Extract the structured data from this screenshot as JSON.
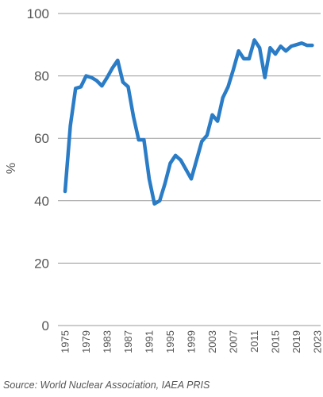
{
  "source": "Source: World Nuclear Association, IAEA PRIS",
  "colors": {
    "line": "#2a7cc6",
    "grid": "#9a9a9a",
    "text": "#555555"
  },
  "chart_data": {
    "type": "line",
    "title": "",
    "xlabel": "",
    "ylabel": "%",
    "ylim": [
      0,
      100
    ],
    "xlim": [
      1975,
      2023
    ],
    "yticks": [
      "0",
      "20",
      "40",
      "60",
      "80",
      "100"
    ],
    "xticks": [
      "1975",
      "1979",
      "1983",
      "1987",
      "1991",
      "1995",
      "1999",
      "2003",
      "2007",
      "2011",
      "2015",
      "2019",
      "2023"
    ],
    "grid": true,
    "legend": "none",
    "series": [
      {
        "x": [
          1975,
          1976,
          1977,
          1978,
          1979,
          1980,
          1981,
          1982,
          1983,
          1984,
          1985,
          1986,
          1987,
          1988,
          1989,
          1990,
          1991,
          1992,
          1993,
          1994,
          1995,
          1996,
          1997,
          1998,
          1999,
          2000,
          2001,
          2002,
          2003,
          2004,
          2005,
          2006,
          2007,
          2008,
          2009,
          2010,
          2011,
          2012,
          2013,
          2014,
          2015,
          2016,
          2017,
          2018,
          2019,
          2020,
          2021,
          2022
        ],
        "y": [
          43,
          64,
          76,
          76.5,
          80,
          79.5,
          78.5,
          76.8,
          79.5,
          82.5,
          85,
          78,
          76.5,
          67,
          59.5,
          59.5,
          47,
          39,
          40,
          45.5,
          52,
          54.5,
          53,
          50,
          47,
          53,
          59,
          61,
          67.5,
          65.5,
          73,
          76.5,
          82,
          88,
          85.5,
          85.5,
          91.5,
          89,
          79.5,
          89,
          87,
          89.5,
          88,
          89.5,
          90,
          90.5,
          89.8,
          89.8
        ]
      }
    ]
  }
}
